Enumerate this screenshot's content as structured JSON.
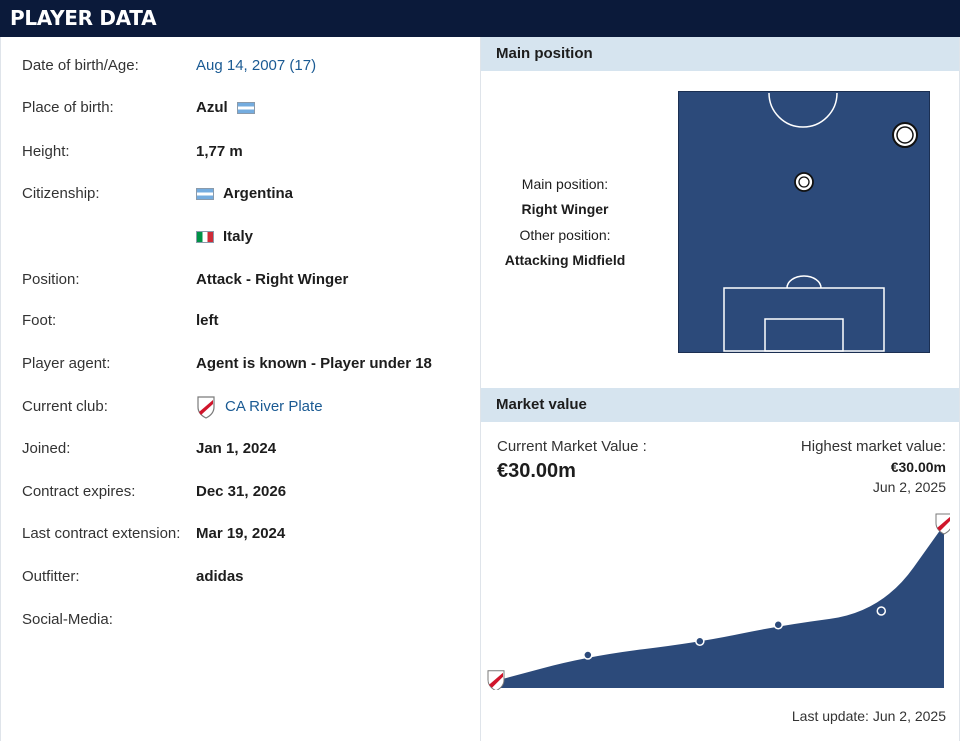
{
  "header": {
    "title": "PLAYER DATA"
  },
  "player_info": {
    "rows": [
      {
        "label": "Date of birth/Age:",
        "value": "Aug 14, 2007 (17)"
      },
      {
        "label": "Place of birth:",
        "value": "Azul"
      },
      {
        "label": "Height:",
        "value": "1,77 m"
      },
      {
        "label": "Citizenship:",
        "value": "Argentina"
      },
      {
        "label": "",
        "value": "Italy"
      },
      {
        "label": "Position:",
        "value": "Attack - Right Winger"
      },
      {
        "label": "Foot:",
        "value": "left"
      },
      {
        "label": "Player agent:",
        "value": "Agent is known - Player under 18"
      },
      {
        "label": "Current club:",
        "value": "CA River Plate"
      },
      {
        "label": "Joined:",
        "value": "Jan 1, 2024"
      },
      {
        "label": "Contract expires:",
        "value": "Dec 31, 2026"
      },
      {
        "label": "Last contract extension:",
        "value": "Mar 19, 2024"
      },
      {
        "label": "Outfitter:",
        "value": "adidas"
      },
      {
        "label": "Social-Media:",
        "value": ""
      }
    ]
  },
  "main_position": {
    "section_title": "Main position",
    "main_label": "Main position:",
    "main_value": "Right Winger",
    "other_label": "Other position:",
    "other_value": "Attacking Midfield"
  },
  "market_value": {
    "section_title": "Market value",
    "current_label": "Current Market Value :",
    "current_value": "€30.00m",
    "highest_label": "Highest market value:",
    "highest_value": "€30.00m",
    "highest_date": "Jun 2, 2025",
    "last_update": "Last update: Jun 2, 2025"
  },
  "chart_data": {
    "type": "area",
    "points": [
      {
        "index": 0,
        "value": 1.5
      },
      {
        "index": 1,
        "value": 6.0
      },
      {
        "index": 2,
        "value": 8.5
      },
      {
        "index": 3,
        "value": 11.5
      },
      {
        "index": 4,
        "value": 14.0
      },
      {
        "index": 5,
        "value": 30.0
      }
    ],
    "ylim": [
      0,
      32
    ]
  },
  "colors": {
    "header_bg": "#0b1a3a",
    "section_bg": "#d6e4ef",
    "pitch": "#2c4a7a",
    "area": "#2c4a7a",
    "link": "#1a5a93"
  }
}
